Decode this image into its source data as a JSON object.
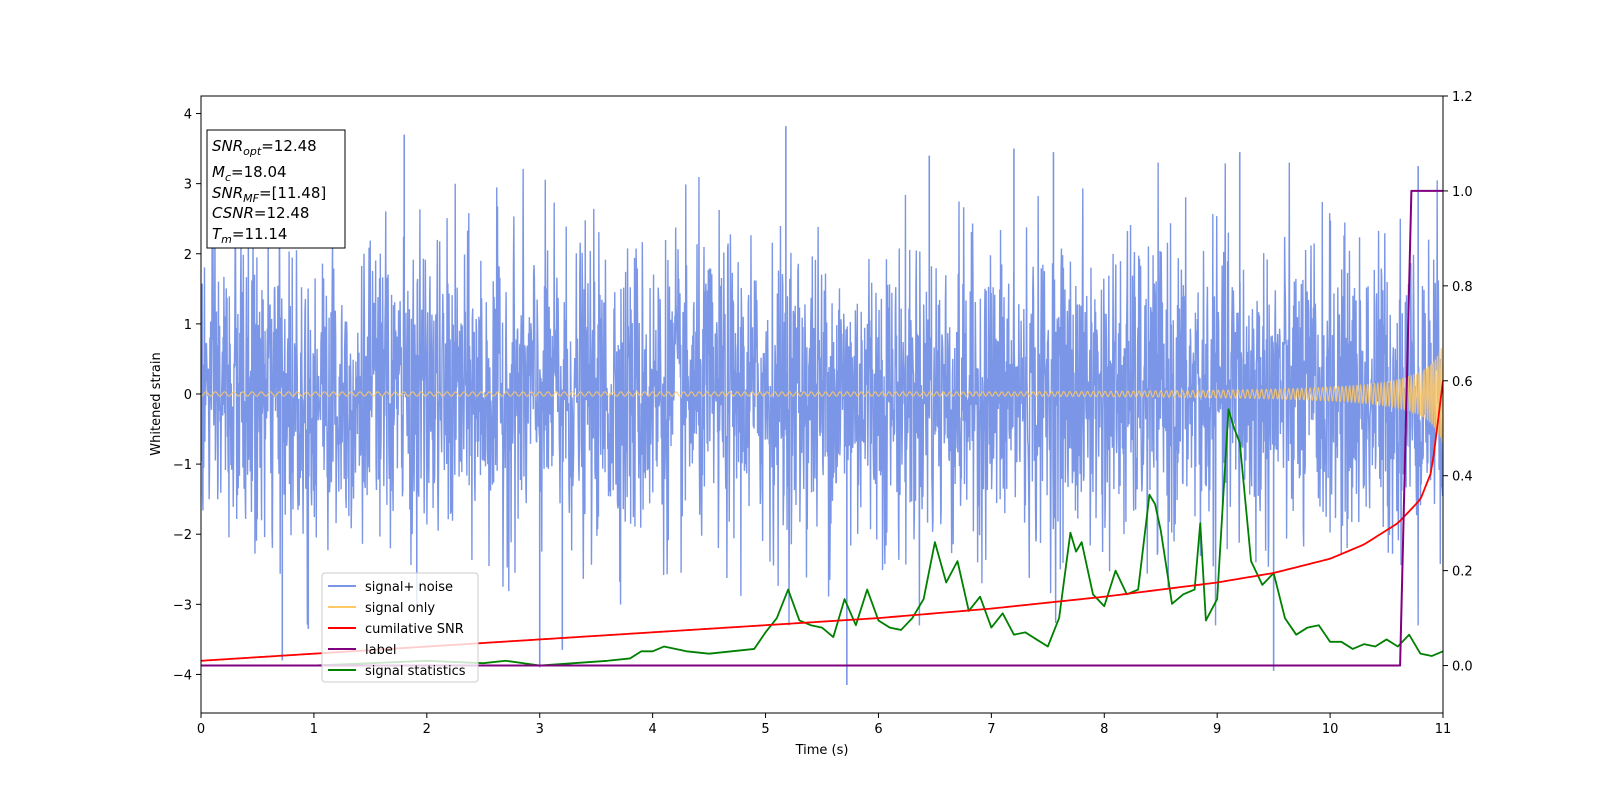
{
  "chart_data": {
    "type": "line",
    "xlabel": "Time (s)",
    "ylabel": "Whitened strain",
    "xlim": [
      0,
      11
    ],
    "ylim_left": [
      -4.55,
      4.25
    ],
    "ylim_right": [
      -0.1,
      1.2
    ],
    "x_ticks": [
      0,
      1,
      2,
      3,
      4,
      5,
      6,
      7,
      8,
      9,
      10,
      11
    ],
    "x_tick_labels": [
      "0",
      "1",
      "2",
      "3",
      "4",
      "5",
      "6",
      "7",
      "8",
      "9",
      "10",
      "11"
    ],
    "y_left_ticks": [
      -4,
      -3,
      -2,
      -1,
      0,
      1,
      2,
      3,
      4
    ],
    "y_left_tick_labels": [
      "−4",
      "−3",
      "−2",
      "−1",
      "0",
      "1",
      "2",
      "3",
      "4"
    ],
    "y_right_ticks": [
      0.0,
      0.2,
      0.4,
      0.6,
      0.8,
      1.0,
      1.2
    ],
    "y_right_tick_labels": [
      "0.0",
      "0.2",
      "0.4",
      "0.6",
      "0.8",
      "1.0",
      "1.2"
    ],
    "grid": false,
    "legend_position": "lower-left",
    "info_box": {
      "lines": [
        {
          "var": "SNR",
          "sub": "opt",
          "value": "=12.48"
        },
        {
          "var": "M",
          "sub": "c",
          "value": "=18.04"
        },
        {
          "var": "SNR",
          "sub": "MF",
          "value": "=[11.48]"
        },
        {
          "var": "CSNR",
          "sub": "",
          "value": "=12.48"
        },
        {
          "var": "T",
          "sub": "m",
          "value": "=11.14"
        }
      ]
    },
    "series": [
      {
        "name": "signal+ noise",
        "color": "#7b96e6",
        "axis": "left",
        "description_kind": "noise",
        "sigma": 1.05,
        "spikes": [
          [
            0.72,
            -3.8
          ],
          [
            0.95,
            -3.35
          ],
          [
            1.8,
            3.7
          ],
          [
            3.0,
            -3.9
          ],
          [
            3.2,
            -3.65
          ],
          [
            5.18,
            3.82
          ],
          [
            5.72,
            -4.15
          ],
          [
            6.45,
            3.4
          ],
          [
            7.2,
            3.5
          ],
          [
            7.55,
            3.45
          ],
          [
            9.2,
            3.45
          ],
          [
            9.5,
            -3.95
          ],
          [
            10.78,
            3.25
          ]
        ]
      },
      {
        "name": "signal only",
        "color": "#ffc966",
        "axis": "left",
        "description_kind": "chirp",
        "chirp_tc": 11.14,
        "amplitude_at_xmax": 0.72
      },
      {
        "name": "cumilative SNR",
        "color": "#ff0000",
        "axis": "right",
        "x": [
          0,
          1,
          2,
          3,
          4,
          5,
          6,
          7,
          8,
          9,
          9.5,
          10,
          10.3,
          10.6,
          10.8,
          10.9,
          11
        ],
        "y": [
          0.01,
          0.025,
          0.04,
          0.055,
          0.07,
          0.085,
          0.1,
          0.12,
          0.145,
          0.175,
          0.195,
          0.225,
          0.255,
          0.3,
          0.35,
          0.41,
          0.6
        ]
      },
      {
        "name": "label",
        "color": "#800080",
        "axis": "right",
        "x": [
          0,
          10.62,
          10.72,
          11
        ],
        "y": [
          0,
          0,
          1,
          1
        ]
      },
      {
        "name": "signal statistics",
        "color": "#008000",
        "axis": "right",
        "x": [
          0,
          0.5,
          1,
          1.5,
          2,
          2.5,
          2.7,
          3,
          3.3,
          3.6,
          3.8,
          3.9,
          4,
          4.1,
          4.3,
          4.5,
          4.7,
          4.9,
          5.0,
          5.1,
          5.2,
          5.3,
          5.4,
          5.5,
          5.6,
          5.7,
          5.8,
          5.9,
          6.0,
          6.1,
          6.2,
          6.3,
          6.4,
          6.5,
          6.6,
          6.7,
          6.8,
          6.9,
          7.0,
          7.1,
          7.2,
          7.3,
          7.4,
          7.5,
          7.6,
          7.7,
          7.75,
          7.8,
          7.9,
          8.0,
          8.1,
          8.2,
          8.3,
          8.4,
          8.45,
          8.5,
          8.6,
          8.7,
          8.8,
          8.85,
          8.9,
          9.0,
          9.1,
          9.15,
          9.2,
          9.3,
          9.4,
          9.5,
          9.6,
          9.7,
          9.8,
          9.9,
          10.0,
          10.1,
          10.2,
          10.3,
          10.4,
          10.5,
          10.6,
          10.7,
          10.8,
          10.9,
          11
        ],
        "y": [
          0.0,
          0.0,
          0.0,
          0.005,
          0.01,
          0.005,
          0.01,
          0.0,
          0.005,
          0.01,
          0.015,
          0.03,
          0.03,
          0.04,
          0.03,
          0.025,
          0.03,
          0.035,
          0.07,
          0.1,
          0.16,
          0.095,
          0.085,
          0.08,
          0.06,
          0.14,
          0.085,
          0.16,
          0.095,
          0.08,
          0.075,
          0.1,
          0.14,
          0.26,
          0.175,
          0.22,
          0.115,
          0.145,
          0.08,
          0.11,
          0.065,
          0.07,
          0.055,
          0.04,
          0.1,
          0.28,
          0.24,
          0.26,
          0.15,
          0.125,
          0.2,
          0.15,
          0.16,
          0.36,
          0.34,
          0.285,
          0.13,
          0.15,
          0.16,
          0.3,
          0.095,
          0.14,
          0.54,
          0.5,
          0.47,
          0.22,
          0.17,
          0.195,
          0.1,
          0.065,
          0.08,
          0.085,
          0.05,
          0.05,
          0.035,
          0.045,
          0.04,
          0.055,
          0.04,
          0.065,
          0.025,
          0.02,
          0.03
        ]
      }
    ]
  }
}
